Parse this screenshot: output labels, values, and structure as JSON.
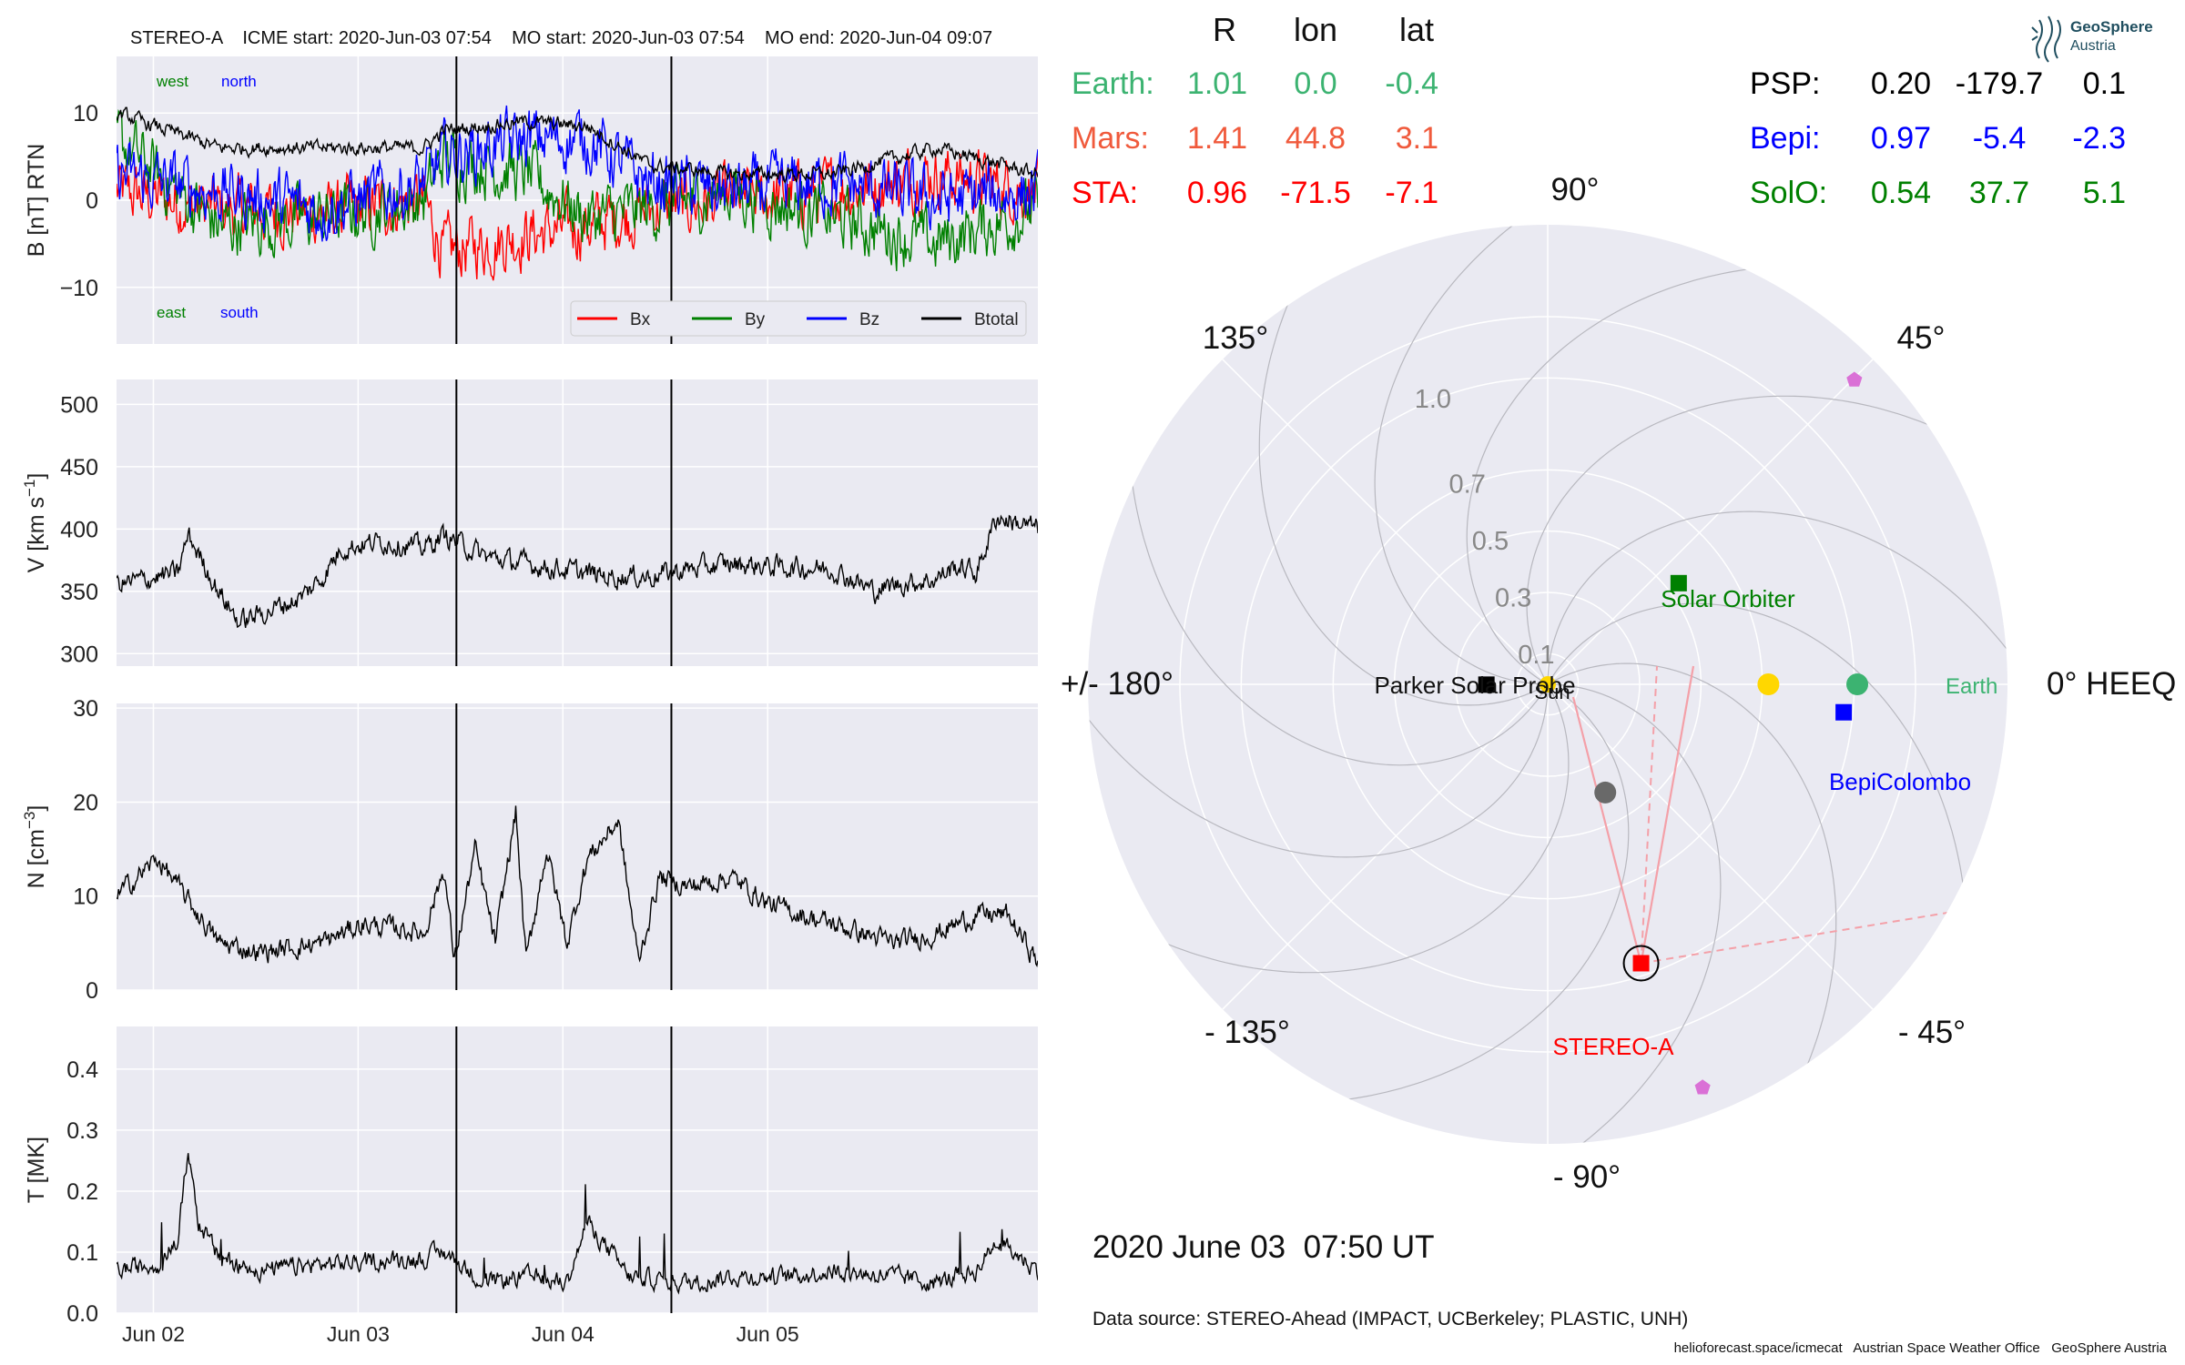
{
  "header": {
    "event_title": "STEREO-A    ICME start: 2020-Jun-03 07:54    MO start: 2020-Jun-03 07:54    MO end: 2020-Jun-04 09:07",
    "logo_line1": "GeoSphere",
    "logo_line2": "Austria"
  },
  "positions_table": {
    "columns": [
      "R",
      "lon",
      "lat"
    ],
    "left_rows": [
      {
        "name": "Earth:",
        "R": "1.01",
        "lon": "0.0",
        "lat": "-0.4",
        "color": "#3cb371"
      },
      {
        "name": "Mars:",
        "R": "1.41",
        "lon": "44.8",
        "lat": "3.1",
        "color": "#f05a3c"
      },
      {
        "name": "STA:",
        "R": "0.96",
        "lon": "-71.5",
        "lat": "-7.1",
        "color": "#ff0000"
      }
    ],
    "right_rows": [
      {
        "name": "PSP:",
        "R": "0.20",
        "lon": "-179.7",
        "lat": "0.1",
        "color": "#000000"
      },
      {
        "name": "Bepi:",
        "R": "0.97",
        "lon": "-5.4",
        "lat": "-2.3",
        "color": "#0000ff"
      },
      {
        "name": "SolO:",
        "R": "0.54",
        "lon": "37.7",
        "lat": "5.1",
        "color": "#008000"
      }
    ]
  },
  "chart_data": [
    {
      "type": "line",
      "panel": "magnetic_field",
      "ylabel": "B [nT] RTN",
      "ylim": [
        -16.5,
        16.5
      ],
      "yticks": [
        10,
        0,
        -10
      ],
      "ytick_labels": [
        "10",
        "0",
        "−10"
      ],
      "grid": true,
      "legend_placement": "lower-right",
      "inline_labels": [
        {
          "text": "west",
          "color": "#008000"
        },
        {
          "text": "north",
          "color": "#0000ff"
        },
        {
          "text": "east",
          "color": "#008000"
        },
        {
          "text": "south",
          "color": "#0000ff"
        }
      ],
      "series": [
        {
          "name": "Bx",
          "color": "#ff0000",
          "x": [
            0,
            0.5,
            1,
            1.5,
            1.6,
            2,
            2.3,
            2.6,
            3.0,
            3.5,
            4,
            4.5
          ],
          "values": [
            1,
            -1,
            -1.5,
            0,
            -6,
            -4,
            -3,
            -1,
            0,
            1,
            3,
            1
          ]
        },
        {
          "name": "By",
          "color": "#008000",
          "x": [
            0,
            0.5,
            1,
            1.5,
            1.6,
            2,
            2.3,
            2.6,
            3.0,
            3.5,
            4,
            4.5
          ],
          "values": [
            7,
            -3,
            -2,
            0,
            5,
            3,
            -2,
            -1,
            1,
            -2,
            -5,
            -1
          ]
        },
        {
          "name": "Bz",
          "color": "#0000ff",
          "x": [
            0,
            0.5,
            1,
            1.5,
            1.6,
            2,
            2.3,
            2.6,
            3.0,
            3.5,
            4,
            4.5
          ],
          "values": [
            3,
            1,
            -1,
            2,
            5,
            7,
            7,
            2,
            1,
            2,
            0,
            1
          ]
        },
        {
          "name": "Btotal",
          "color": "#000000",
          "x": [
            0,
            0.5,
            1,
            1.5,
            1.6,
            2,
            2.3,
            2.6,
            3.0,
            3.5,
            4,
            4.5
          ],
          "values": [
            10,
            6,
            6,
            6,
            8,
            9,
            8.5,
            4,
            3,
            3,
            6,
            3
          ]
        }
      ]
    },
    {
      "type": "line",
      "panel": "speed",
      "ylabel": "V [km s",
      "ylabel_sup": "−1",
      "ylabel_end": "]",
      "ylim": [
        290,
        520
      ],
      "yticks": [
        500,
        450,
        400,
        350,
        300
      ],
      "grid": true,
      "series": [
        {
          "name": "V",
          "color": "#000000",
          "x": [
            0,
            0.3,
            0.35,
            0.5,
            0.6,
            0.9,
            1.0,
            1.1,
            1.3,
            1.5,
            1.6,
            1.8,
            2.0,
            2.4,
            2.6,
            2.8,
            3.0,
            3.2,
            3.5,
            3.7,
            3.8,
            4.0,
            4.1,
            4.2,
            4.3,
            4.4,
            4.5
          ],
          "values": [
            355,
            365,
            395,
            350,
            325,
            345,
            360,
            385,
            390,
            385,
            395,
            378,
            372,
            362,
            362,
            368,
            372,
            370,
            368,
            350,
            355,
            360,
            370,
            365,
            410,
            405,
            400
          ]
        }
      ]
    },
    {
      "type": "line",
      "panel": "density",
      "ylabel": "N [cm",
      "ylabel_sup": "−3",
      "ylabel_end": "]",
      "ylim": [
        0,
        30.5
      ],
      "yticks": [
        30,
        20,
        10,
        0
      ],
      "grid": true,
      "series": [
        {
          "name": "N",
          "color": "#000000",
          "x": [
            0,
            0.2,
            0.4,
            0.5,
            0.7,
            1.0,
            1.2,
            1.4,
            1.5,
            1.6,
            1.65,
            1.75,
            1.85,
            1.95,
            2.0,
            2.1,
            2.2,
            2.3,
            2.45,
            2.55,
            2.65,
            2.8,
            3.0,
            3.2,
            3.5,
            3.8,
            4.0,
            4.2,
            4.35,
            4.5
          ],
          "values": [
            10,
            14,
            8,
            5,
            4,
            5,
            7,
            6.5,
            6,
            13,
            3,
            15,
            5,
            19,
            3,
            15,
            5,
            14,
            18,
            3,
            12,
            11,
            12,
            9,
            7,
            5,
            6,
            8,
            8,
            3
          ]
        }
      ]
    },
    {
      "type": "line",
      "panel": "temperature",
      "ylabel": "T [MK]",
      "ylim": [
        0,
        0.47
      ],
      "yticks": [
        0.4,
        0.3,
        0.2,
        0.1,
        0.0
      ],
      "ytick_labels": [
        "0.4",
        "0.3",
        "0.2",
        "0.1",
        "0.0"
      ],
      "xtick_labels": [
        "Jun 02",
        "Jun 03",
        "Jun 04",
        "Jun 05"
      ],
      "grid": true,
      "series": [
        {
          "name": "T",
          "color": "#000000",
          "x": [
            0,
            0.2,
            0.3,
            0.35,
            0.4,
            0.5,
            0.7,
            1.0,
            1.5,
            1.6,
            1.8,
            2.0,
            2.2,
            2.3,
            2.5,
            2.8,
            3.0,
            3.3,
            3.5,
            3.8,
            4.0,
            4.2,
            4.3,
            4.5
          ],
          "values": [
            0.07,
            0.08,
            0.12,
            0.27,
            0.15,
            0.09,
            0.07,
            0.08,
            0.09,
            0.1,
            0.05,
            0.06,
            0.05,
            0.15,
            0.06,
            0.05,
            0.06,
            0.06,
            0.07,
            0.06,
            0.05,
            0.07,
            0.12,
            0.07
          ]
        }
      ]
    },
    {
      "type": "scatter",
      "panel": "polar_positions",
      "radial_ticks": [
        "0.1",
        "0.3",
        "0.5",
        "0.7",
        "1.0"
      ],
      "angle_labels": {
        "a0": "0° HEEQ",
        "a45": "45°",
        "a90": "90°",
        "a135": "135°",
        "a180": "+/- 180°",
        "am135": "- 135°",
        "am90": "- 90°",
        "am45": "- 45°"
      },
      "points": [
        {
          "name": "Sun",
          "r": 0.0,
          "lon": 0,
          "marker": "circle",
          "color": "#ffd700"
        },
        {
          "name": "Earth",
          "r": 1.01,
          "lon": 0.0,
          "marker": "circle",
          "color": "#3cb371"
        },
        {
          "name": "Mars",
          "r": 1.41,
          "lon": 44.8,
          "marker": "pentagon",
          "color": "#da70d6"
        },
        {
          "name": "STEREO-A",
          "r": 0.96,
          "lon": -71.5,
          "marker": "square",
          "color": "#ff0000"
        },
        {
          "name": "Parker Solar Probe",
          "r": 0.2,
          "lon": -179.7,
          "marker": "square",
          "color": "#000000"
        },
        {
          "name": "BepiColombo",
          "r": 0.97,
          "lon": -5.4,
          "marker": "square",
          "color": "#0000ff"
        },
        {
          "name": "Solar Orbiter",
          "r": 0.54,
          "lon": 37.7,
          "marker": "square",
          "color": "#008000"
        },
        {
          "name": "Venus",
          "r": 0.72,
          "lon": 0.0,
          "marker": "circle",
          "color": "#ffd700"
        },
        {
          "name": "Mercury",
          "r": 0.4,
          "lon": -62,
          "marker": "circle",
          "color": "#696969"
        },
        {
          "name": "pentagon-lower",
          "r": 1.41,
          "lon": -69,
          "marker": "pentagon",
          "color": "#da70d6"
        }
      ],
      "labels": [
        "Sun",
        "Earth",
        "STEREO-A",
        "Parker Solar Probe",
        "BepiColombo",
        "Solar Orbiter"
      ]
    }
  ],
  "footer": {
    "date": "2020 June 03  07:50 UT",
    "source": "Data source: STEREO-Ahead (IMPACT, UCBerkeley; PLASTIC, UNH)",
    "credits": "helioforecast.space/icmecat   Austrian Space Weather Office   GeoSphere Austria"
  },
  "colors": {
    "panel_bg": "#eaeaf2",
    "grid": "#ffffff"
  }
}
